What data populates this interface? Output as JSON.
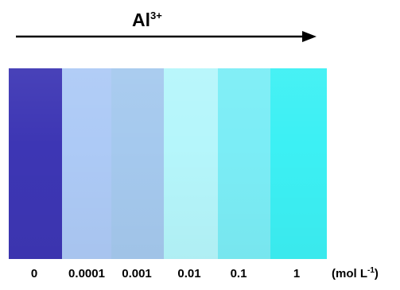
{
  "title": {
    "ion": "Al",
    "charge": "3+"
  },
  "strips": [
    {
      "label": "0",
      "color": "#3d36b4"
    },
    {
      "label": "0.0001",
      "color": "#adcaf6"
    },
    {
      "label": "0.001",
      "color": "#a5c9ee"
    },
    {
      "label": "0.01",
      "color": "#b5f6fb"
    },
    {
      "label": "0.1",
      "color": "#7bedf6"
    },
    {
      "label": "1",
      "color": "#3cf0f4"
    }
  ],
  "unit": {
    "text": "(mol L",
    "exponent": "-1",
    "close": ")"
  },
  "arrow_color": "#000000"
}
